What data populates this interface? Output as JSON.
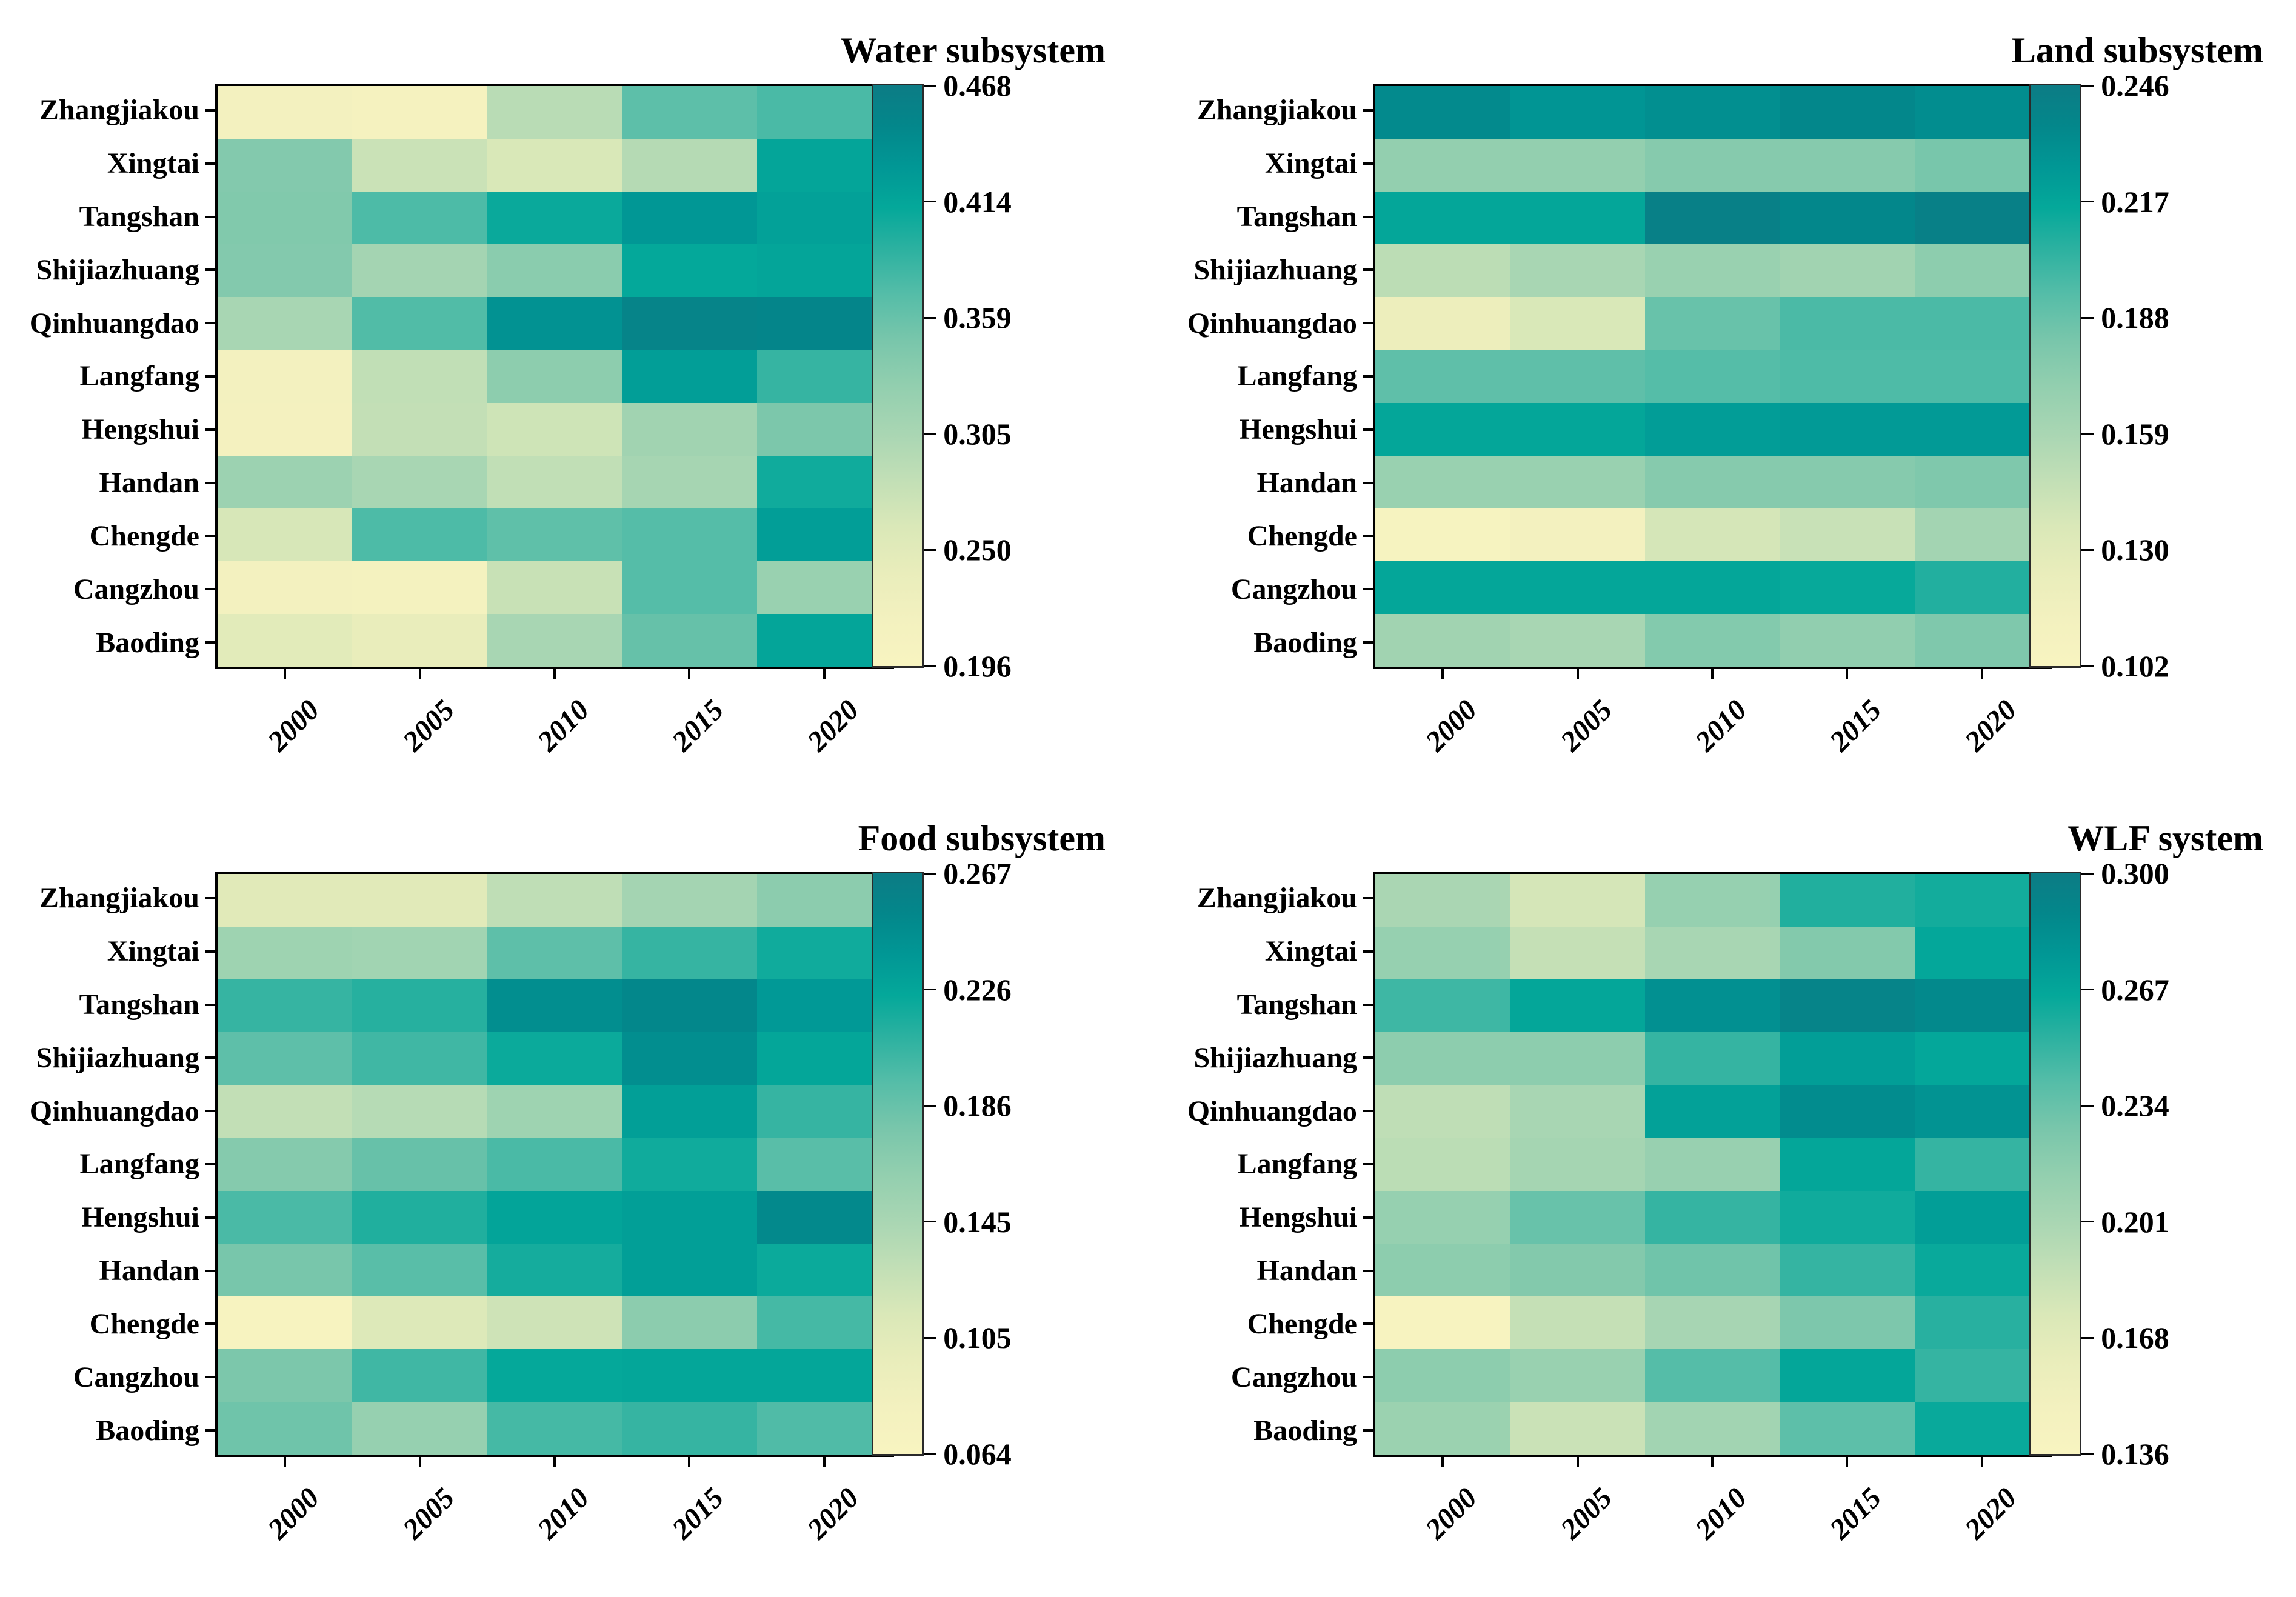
{
  "page": {
    "background": "#ffffff",
    "text_color": "#000000"
  },
  "colormap": {
    "description": "shared yellow-green-teal heatmap colormap, low to high",
    "stops": [
      {
        "t": 0.0,
        "color": "#F8F4C0"
      },
      {
        "t": 0.08,
        "color": "#F3F1BF"
      },
      {
        "t": 0.16,
        "color": "#E9EDBB"
      },
      {
        "t": 0.24,
        "color": "#DAE8B8"
      },
      {
        "t": 0.32,
        "color": "#C2DFB6"
      },
      {
        "t": 0.4,
        "color": "#A9D6B3"
      },
      {
        "t": 0.48,
        "color": "#93CFAF"
      },
      {
        "t": 0.56,
        "color": "#79C6AB"
      },
      {
        "t": 0.64,
        "color": "#55BDA8"
      },
      {
        "t": 0.72,
        "color": "#2BB1A0"
      },
      {
        "t": 0.79,
        "color": "#04A89A"
      },
      {
        "t": 0.86,
        "color": "#019795"
      },
      {
        "t": 0.93,
        "color": "#03878B"
      },
      {
        "t": 1.0,
        "color": "#0C7C85"
      }
    ]
  },
  "chart_data": [
    {
      "type": "heatmap",
      "title": "Water subsystem",
      "xlabel": "",
      "ylabel": "",
      "columns": [
        "2000",
        "2005",
        "2010",
        "2015",
        "2020"
      ],
      "rows": [
        "Zhangjiakou",
        "Xingtai",
        "Tangshan",
        "Shijiazhuang",
        "Qinhuangdao",
        "Langfang",
        "Hengshui",
        "Handan",
        "Chengde",
        "Cangzhou",
        "Baoding"
      ],
      "vmin": 0.196,
      "vmax": 0.468,
      "colorbar_tick_labels": [
        "0.468",
        "0.414",
        "0.359",
        "0.305",
        "0.250",
        "0.196"
      ],
      "values": [
        [
          0.218,
          0.21,
          0.291,
          0.365,
          0.376
        ],
        [
          0.34,
          0.276,
          0.262,
          0.294,
          0.414
        ],
        [
          0.342,
          0.374,
          0.408,
          0.43,
          0.419
        ],
        [
          0.34,
          0.31,
          0.334,
          0.411,
          0.414
        ],
        [
          0.306,
          0.372,
          0.436,
          0.455,
          0.452
        ],
        [
          0.218,
          0.284,
          0.332,
          0.422,
          0.386
        ],
        [
          0.215,
          0.282,
          0.272,
          0.313,
          0.346
        ],
        [
          0.318,
          0.306,
          0.284,
          0.308,
          0.405
        ],
        [
          0.264,
          0.374,
          0.364,
          0.37,
          0.422
        ],
        [
          0.218,
          0.214,
          0.278,
          0.37,
          0.321
        ],
        [
          0.25,
          0.24,
          0.306,
          0.36,
          0.414
        ]
      ]
    },
    {
      "type": "heatmap",
      "title": "Land subsystem",
      "xlabel": "",
      "ylabel": "",
      "columns": [
        "2000",
        "2005",
        "2010",
        "2015",
        "2020"
      ],
      "rows": [
        "Zhangjiakou",
        "Xingtai",
        "Tangshan",
        "Shijiazhuang",
        "Qinhuangdao",
        "Langfang",
        "Hengshui",
        "Handan",
        "Chengde",
        "Cangzhou",
        "Baoding"
      ],
      "vmin": 0.102,
      "vmax": 0.246,
      "colorbar_tick_labels": [
        "0.246",
        "0.217",
        "0.188",
        "0.159",
        "0.130",
        "0.102"
      ],
      "values": [
        [
          0.234,
          0.227,
          0.231,
          0.236,
          0.232
        ],
        [
          0.171,
          0.171,
          0.177,
          0.177,
          0.183
        ],
        [
          0.217,
          0.217,
          0.242,
          0.236,
          0.242
        ],
        [
          0.151,
          0.16,
          0.168,
          0.164,
          0.174
        ],
        [
          0.121,
          0.137,
          0.188,
          0.197,
          0.197
        ],
        [
          0.191,
          0.191,
          0.194,
          0.196,
          0.196
        ],
        [
          0.217,
          0.217,
          0.222,
          0.224,
          0.224
        ],
        [
          0.168,
          0.168,
          0.177,
          0.177,
          0.18
        ],
        [
          0.106,
          0.114,
          0.139,
          0.145,
          0.163
        ],
        [
          0.217,
          0.217,
          0.217,
          0.215,
          0.208
        ],
        [
          0.164,
          0.16,
          0.178,
          0.172,
          0.18
        ]
      ]
    },
    {
      "type": "heatmap",
      "title": "Food subsystem",
      "xlabel": "",
      "ylabel": "",
      "columns": [
        "2000",
        "2005",
        "2010",
        "2015",
        "2020"
      ],
      "rows": [
        "Zhangjiakou",
        "Xingtai",
        "Tangshan",
        "Shijiazhuang",
        "Qinhuangdao",
        "Langfang",
        "Hengshui",
        "Handan",
        "Chengde",
        "Cangzhou",
        "Baoding"
      ],
      "vmin": 0.064,
      "vmax": 0.267,
      "colorbar_tick_labels": [
        "0.267",
        "0.226",
        "0.186",
        "0.145",
        "0.105",
        "0.064"
      ],
      "values": [
        [
          0.105,
          0.105,
          0.131,
          0.149,
          0.166
        ],
        [
          0.153,
          0.151,
          0.19,
          0.206,
          0.22
        ],
        [
          0.206,
          0.212,
          0.247,
          0.253,
          0.237
        ],
        [
          0.19,
          0.202,
          0.222,
          0.247,
          0.226
        ],
        [
          0.129,
          0.137,
          0.153,
          0.232,
          0.206
        ],
        [
          0.17,
          0.186,
          0.198,
          0.22,
          0.192
        ],
        [
          0.198,
          0.214,
          0.228,
          0.232,
          0.251
        ],
        [
          0.178,
          0.192,
          0.218,
          0.232,
          0.222
        ],
        [
          0.068,
          0.109,
          0.121,
          0.166,
          0.2
        ],
        [
          0.176,
          0.202,
          0.224,
          0.226,
          0.226
        ],
        [
          0.182,
          0.159,
          0.2,
          0.206,
          0.196
        ]
      ]
    },
    {
      "type": "heatmap",
      "title": "WLF system",
      "xlabel": "",
      "ylabel": "",
      "columns": [
        "2000",
        "2005",
        "2010",
        "2015",
        "2020"
      ],
      "rows": [
        "Zhangjiakou",
        "Xingtai",
        "Tangshan",
        "Shijiazhuang",
        "Qinhuangdao",
        "Langfang",
        "Hengshui",
        "Handan",
        "Chengde",
        "Cangzhou",
        "Baoding"
      ],
      "vmin": 0.136,
      "vmax": 0.3,
      "colorbar_tick_labels": [
        "0.300",
        "0.267",
        "0.234",
        "0.201",
        "0.168",
        "0.136"
      ],
      "values": [
        [
          0.201,
          0.178,
          0.213,
          0.257,
          0.261
        ],
        [
          0.213,
          0.187,
          0.202,
          0.223,
          0.266
        ],
        [
          0.248,
          0.267,
          0.282,
          0.292,
          0.287
        ],
        [
          0.218,
          0.218,
          0.251,
          0.272,
          0.266
        ],
        [
          0.19,
          0.202,
          0.27,
          0.285,
          0.28
        ],
        [
          0.192,
          0.204,
          0.212,
          0.267,
          0.251
        ],
        [
          0.213,
          0.234,
          0.251,
          0.262,
          0.272
        ],
        [
          0.218,
          0.223,
          0.231,
          0.251,
          0.264
        ],
        [
          0.139,
          0.187,
          0.203,
          0.226,
          0.255
        ],
        [
          0.218,
          0.211,
          0.241,
          0.267,
          0.251
        ],
        [
          0.21,
          0.184,
          0.206,
          0.238,
          0.264
        ]
      ]
    }
  ]
}
